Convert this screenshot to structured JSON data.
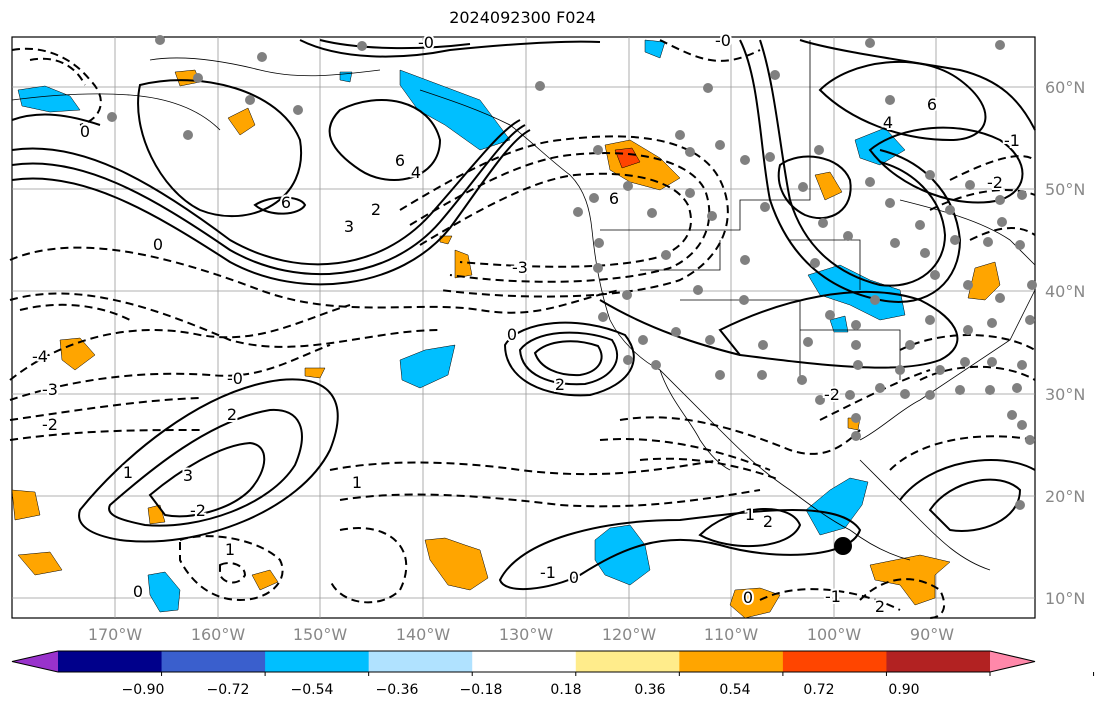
{
  "title": "2024092300 F024",
  "map": {
    "lat_labels": [
      "60°N",
      "50°N",
      "40°N",
      "30°N",
      "20°N",
      "10°N"
    ],
    "lon_labels": [
      "170°W",
      "160°W",
      "150°W",
      "140°W",
      "130°W",
      "120°W",
      "110°W",
      "100°W",
      "90°W"
    ],
    "contour_labels": [
      "6",
      "6",
      "6",
      "3",
      "0",
      "-3",
      "2",
      "2",
      "0",
      "-2",
      "-3",
      "-4",
      "2",
      "-2",
      "1",
      "-0",
      "1",
      "2",
      "3",
      "1",
      "0",
      "-1",
      "1",
      "2",
      "-1",
      "0",
      "-2",
      "-0",
      "-2",
      "-1",
      "4",
      "0",
      "-0",
      "0",
      "6",
      "4"
    ]
  },
  "colorbar": {
    "colors": [
      "#9932cc",
      "#00008b",
      "#3a5fcd",
      "#00bfff",
      "#b0e2ff",
      "#ffffff",
      "#ffec8b",
      "#ffa500",
      "#ff4500",
      "#b22222",
      "#ff88aa"
    ],
    "tick_labels": [
      "−0.90",
      "−0.72",
      "−0.54",
      "−0.36",
      "−0.18",
      "0.18",
      "0.36",
      "0.54",
      "0.72",
      "0.90"
    ]
  },
  "station_marker": "black-dot"
}
